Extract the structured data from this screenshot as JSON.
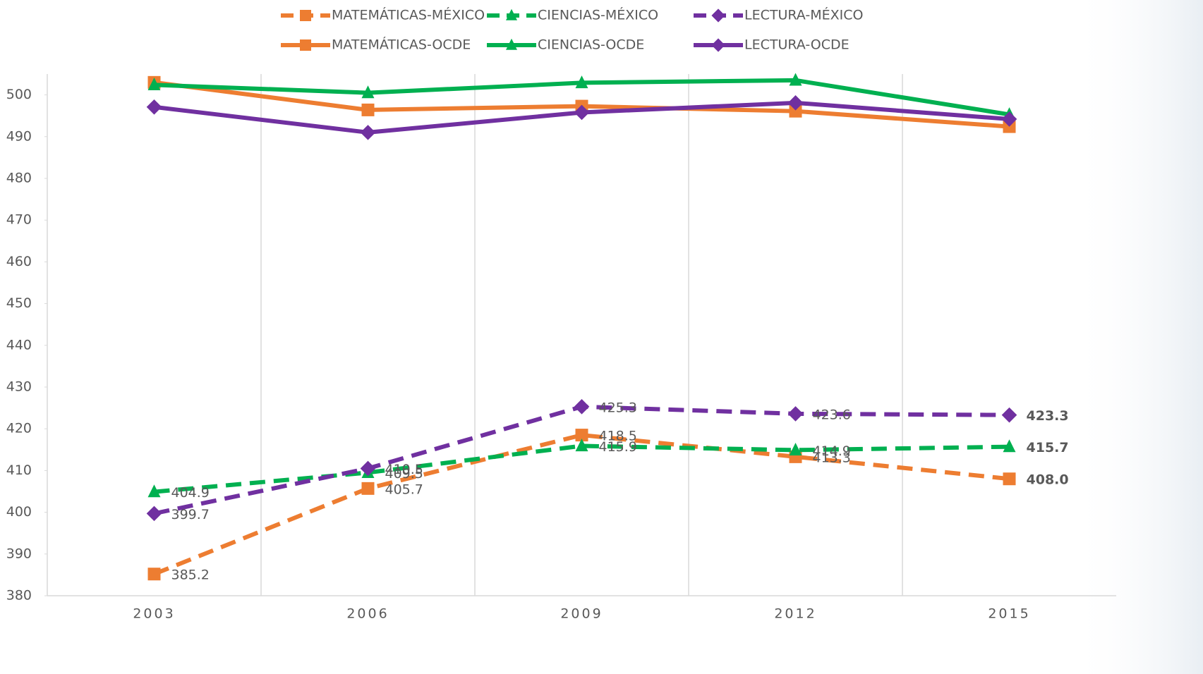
{
  "chart_data": {
    "type": "line",
    "categories": [
      "2003",
      "2006",
      "2009",
      "2012",
      "2015"
    ],
    "series": [
      {
        "name": "MATEMÁTICAS-MÉXICO",
        "color": "#ed7d31",
        "dashed": true,
        "marker": "square",
        "values": [
          385.2,
          405.7,
          418.5,
          413.3,
          408.0
        ],
        "value_labels": [
          "385.2",
          "405.7",
          "418.5",
          "413.3",
          "408.0"
        ]
      },
      {
        "name": "CIENCIAS-MÉXICO",
        "color": "#00b050",
        "dashed": true,
        "marker": "triangle",
        "values": [
          404.9,
          409.5,
          415.9,
          414.9,
          415.7
        ],
        "value_labels": [
          "404.9",
          "409.5",
          "415.9",
          "414.9",
          "415.7"
        ]
      },
      {
        "name": "LECTURA-MÉXICO",
        "color": "#7030a0",
        "dashed": true,
        "marker": "diamond",
        "values": [
          399.7,
          410.5,
          425.3,
          423.6,
          423.3
        ],
        "value_labels": [
          "399.7",
          "410.5",
          "425.3",
          "423.6",
          "423.3"
        ]
      },
      {
        "name": "MATEMÁTICAS-OCDE",
        "color": "#ed7d31",
        "dashed": false,
        "marker": "square",
        "values": [
          503.0,
          496.4,
          497.3,
          496.1,
          492.4
        ]
      },
      {
        "name": "CIENCIAS-OCDE",
        "color": "#00b050",
        "dashed": false,
        "marker": "triangle",
        "values": [
          502.4,
          500.5,
          502.9,
          503.5,
          495.3
        ]
      },
      {
        "name": "LECTURA-OCDE",
        "color": "#7030a0",
        "dashed": false,
        "marker": "diamond",
        "values": [
          497.1,
          491.0,
          495.8,
          498.1,
          494.2
        ]
      }
    ],
    "ylim": [
      380,
      505
    ],
    "yticks": [
      380,
      390,
      400,
      410,
      420,
      430,
      440,
      450,
      460,
      470,
      480,
      490,
      500
    ],
    "grid": true,
    "bold_last_label": true,
    "legend": "top"
  }
}
